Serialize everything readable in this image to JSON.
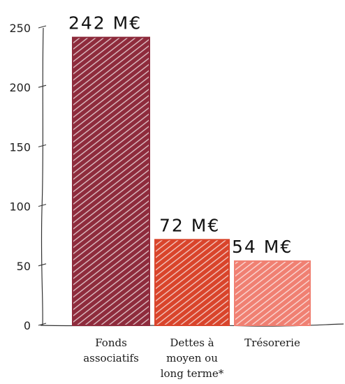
{
  "chart_data": {
    "type": "bar",
    "title": "",
    "xlabel": "",
    "ylabel": "",
    "categories": [
      [
        "Fonds",
        "associatifs"
      ],
      [
        "Dettes à",
        "moyen ou",
        "long terme*"
      ],
      [
        "Trésorerie"
      ]
    ],
    "values": [
      242,
      72,
      54
    ],
    "data_labels": [
      "242 M€",
      "72 M€",
      "54 M€"
    ],
    "colors": [
      "#8e2b3c",
      "#d9442b",
      "#f08072"
    ],
    "ylim": [
      0,
      250
    ],
    "yticks": [
      0,
      50,
      100,
      150,
      200,
      250
    ],
    "grid": false,
    "legend": "none",
    "style": "hand-drawn hatched bars"
  }
}
